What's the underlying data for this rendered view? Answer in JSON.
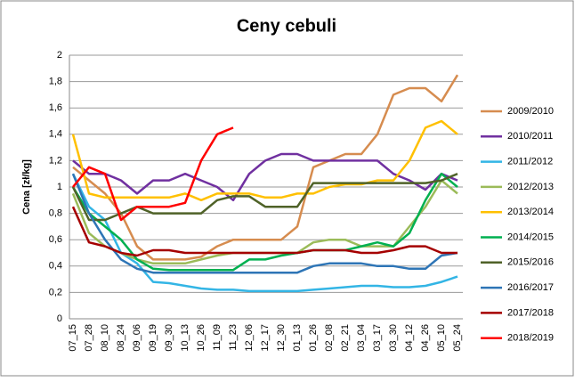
{
  "chart_data": {
    "type": "line",
    "title": "Ceny cebuli",
    "y_label": "Cena [zł/kg]",
    "categories": [
      "07_15",
      "07_28",
      "08_10",
      "08_24",
      "09_06",
      "09_19",
      "09_30",
      "10_13",
      "10_26",
      "11_09",
      "11_23",
      "12_06",
      "12_17",
      "12_30",
      "01_13",
      "01_26",
      "02_08",
      "02_21",
      "03_04",
      "03_17",
      "03_30",
      "04_12",
      "04_26",
      "05_10",
      "05_24"
    ],
    "series": [
      {
        "name": "2009/2010",
        "color": "#d68c4f",
        "values": [
          1.15,
          1.05,
          0.95,
          0.8,
          0.55,
          0.45,
          0.45,
          0.45,
          0.47,
          0.55,
          0.6,
          0.6,
          0.6,
          0.6,
          0.7,
          1.15,
          1.2,
          1.25,
          1.25,
          1.4,
          1.7,
          1.75,
          1.75,
          1.65,
          1.85
        ]
      },
      {
        "name": "2010/2011",
        "color": "#7030a0",
        "values": [
          1.2,
          1.1,
          1.1,
          1.05,
          0.95,
          1.05,
          1.05,
          1.1,
          1.05,
          1.0,
          0.9,
          1.1,
          1.2,
          1.25,
          1.25,
          1.2,
          1.2,
          1.2,
          1.2,
          1.2,
          1.1,
          1.05,
          0.98,
          1.1,
          1.05
        ]
      },
      {
        "name": "2011/2012",
        "color": "#33b5e5",
        "values": [
          1.1,
          0.85,
          0.75,
          0.5,
          0.42,
          0.28,
          0.27,
          0.25,
          0.23,
          0.22,
          0.22,
          0.21,
          0.21,
          0.21,
          0.21,
          0.22,
          0.23,
          0.24,
          0.25,
          0.25,
          0.24,
          0.24,
          0.25,
          0.28,
          0.32
        ]
      },
      {
        "name": "2012/2013",
        "color": "#9bbb59",
        "values": [
          0.95,
          0.65,
          0.55,
          0.5,
          0.45,
          0.42,
          0.42,
          0.42,
          0.45,
          0.48,
          0.5,
          0.5,
          0.5,
          0.5,
          0.5,
          0.58,
          0.6,
          0.6,
          0.55,
          0.55,
          0.55,
          0.7,
          0.85,
          1.05,
          0.95
        ]
      },
      {
        "name": "2013/2014",
        "color": "#ffc000",
        "values": [
          1.4,
          0.95,
          0.92,
          0.92,
          0.92,
          0.92,
          0.92,
          0.95,
          0.9,
          0.95,
          0.95,
          0.95,
          0.92,
          0.92,
          0.95,
          0.95,
          1.0,
          1.02,
          1.02,
          1.05,
          1.05,
          1.2,
          1.45,
          1.5,
          1.4
        ]
      },
      {
        "name": "2014/2015",
        "color": "#00b050",
        "values": [
          1.0,
          0.8,
          0.7,
          0.6,
          0.45,
          0.38,
          0.37,
          0.37,
          0.37,
          0.37,
          0.37,
          0.45,
          0.45,
          0.48,
          0.5,
          0.52,
          0.52,
          0.52,
          0.55,
          0.58,
          0.55,
          0.65,
          0.9,
          1.1,
          1.0
        ]
      },
      {
        "name": "2015/2016",
        "color": "#4f6228",
        "values": [
          1.0,
          0.75,
          0.75,
          0.8,
          0.85,
          0.8,
          0.8,
          0.8,
          0.8,
          0.9,
          0.93,
          0.93,
          0.85,
          0.85,
          0.85,
          1.03,
          1.03,
          1.03,
          1.03,
          1.03,
          1.03,
          1.03,
          1.03,
          1.05,
          1.1
        ]
      },
      {
        "name": "2016/2017",
        "color": "#2e75b6",
        "values": [
          1.1,
          0.8,
          0.6,
          0.45,
          0.38,
          0.35,
          0.35,
          0.35,
          0.35,
          0.35,
          0.35,
          0.35,
          0.35,
          0.35,
          0.35,
          0.4,
          0.42,
          0.42,
          0.42,
          0.4,
          0.4,
          0.38,
          0.38,
          0.48,
          0.5
        ]
      },
      {
        "name": "2017/2018",
        "color": "#a50000",
        "values": [
          0.85,
          0.58,
          0.55,
          0.5,
          0.48,
          0.52,
          0.52,
          0.5,
          0.5,
          0.5,
          0.5,
          0.5,
          0.5,
          0.5,
          0.5,
          0.52,
          0.52,
          0.52,
          0.5,
          0.5,
          0.52,
          0.55,
          0.55,
          0.5,
          0.5
        ]
      },
      {
        "name": "2018/2019",
        "color": "#ff0000",
        "values": [
          1.0,
          1.15,
          1.1,
          0.75,
          0.85,
          0.85,
          0.85,
          0.88,
          1.2,
          1.4,
          1.45,
          null,
          null,
          null,
          null,
          null,
          null,
          null,
          null,
          null,
          null,
          null,
          null,
          null,
          null
        ]
      }
    ],
    "ylim": [
      0,
      2
    ],
    "yticks": [
      0,
      {
        "value": 0.2,
        "label": "0,2"
      },
      {
        "value": 0.4,
        "label": "0,4"
      },
      {
        "value": 0.6,
        "label": "0,6"
      },
      {
        "value": 0.8,
        "label": "0,8"
      },
      1,
      {
        "value": 1.2,
        "label": "1,2"
      },
      {
        "value": 1.4,
        "label": "1,4"
      },
      {
        "value": 1.6,
        "label": "1,6"
      },
      {
        "value": 1.8,
        "label": "1,8"
      },
      2
    ],
    "grid": true,
    "legend": "right"
  }
}
